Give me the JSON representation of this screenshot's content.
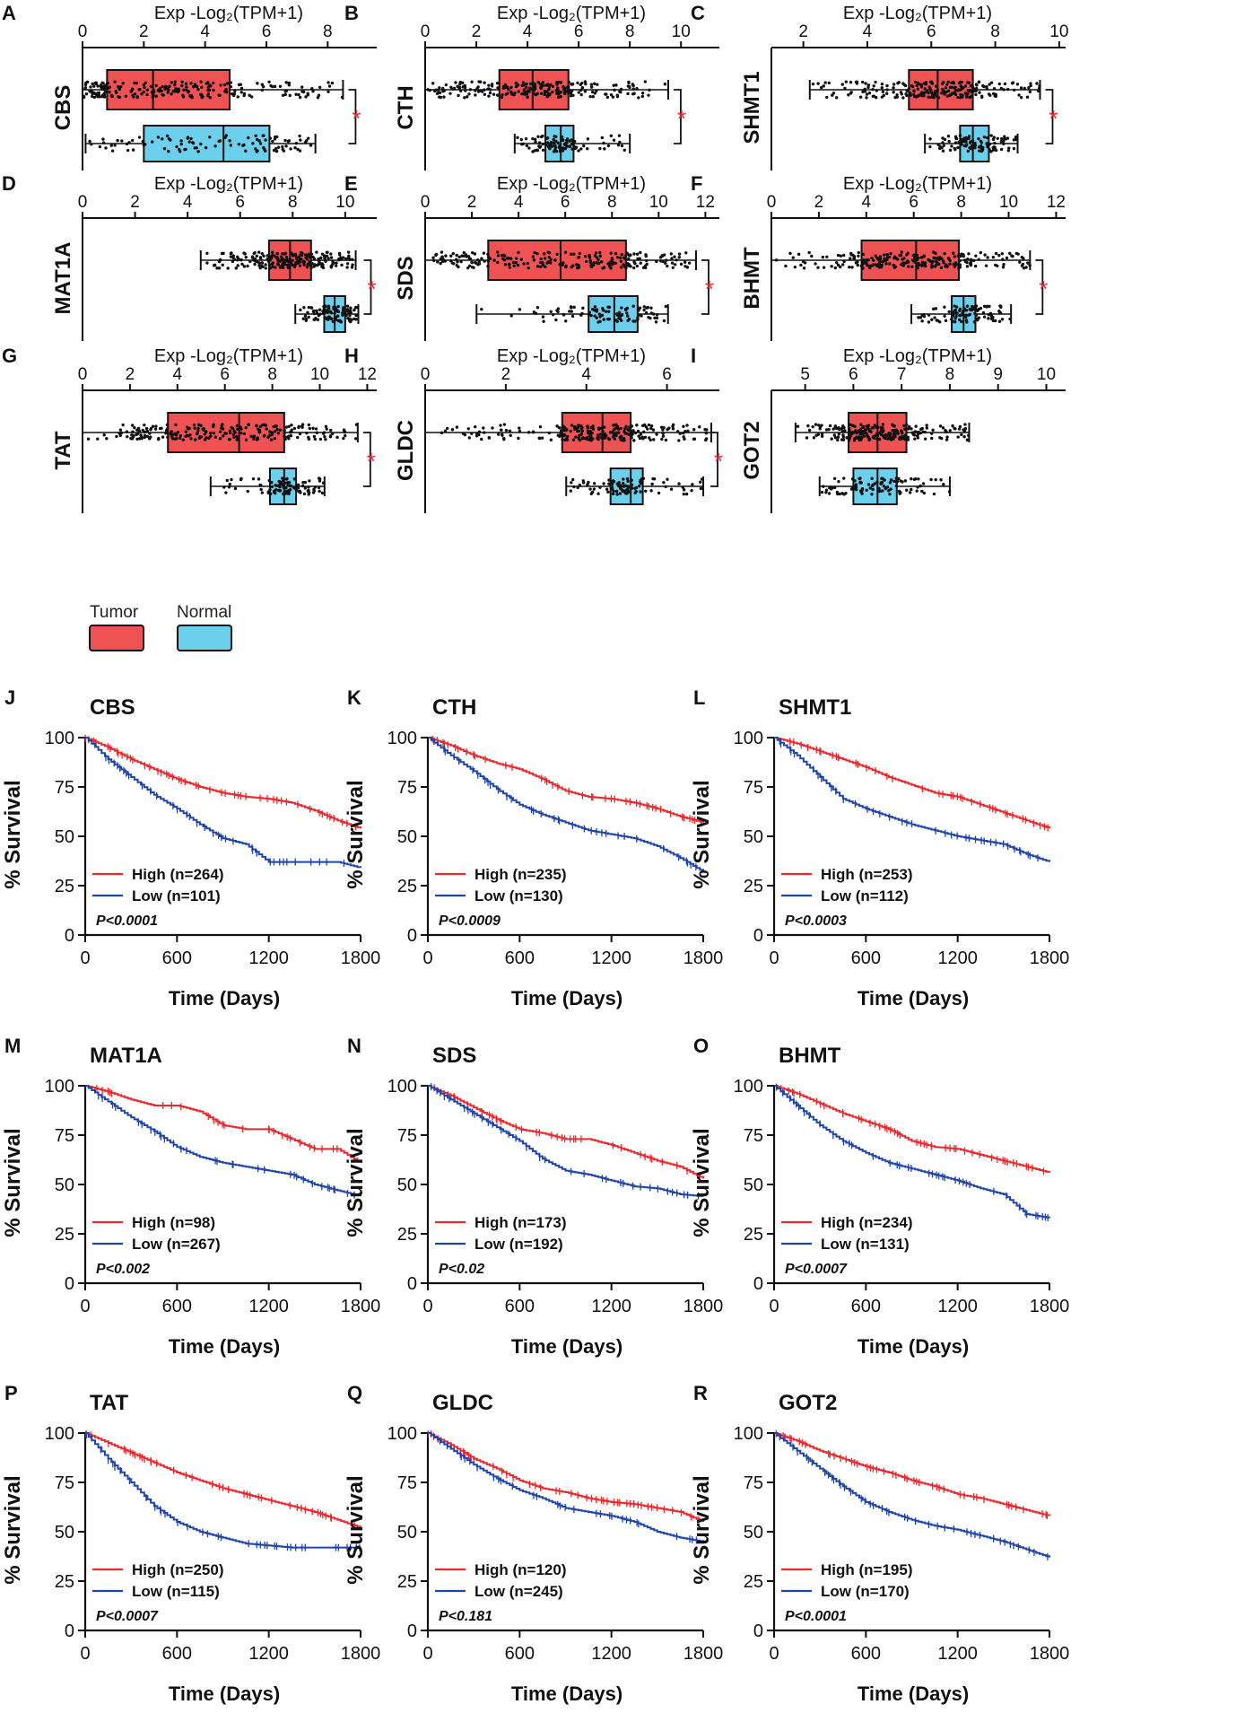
{
  "legend": {
    "tumor_label": "Tumor",
    "normal_label": "Normal",
    "tumor_color": "#ee5253",
    "normal_color": "#6ccfec"
  },
  "colors": {
    "high": "#e8292e",
    "low": "#1f45a8",
    "star": "#e8292e",
    "axis": "#111111"
  },
  "chart_data": [
    {
      "panel": "A",
      "gene": "CBS",
      "type": "box",
      "title": "Exp -Log₂(TPM+1)",
      "ticks": [
        0,
        2,
        4,
        6,
        8
      ],
      "xlim": [
        0,
        9.6
      ],
      "tumor": {
        "min": 0,
        "q1": 0.8,
        "median": 2.3,
        "q3": 4.8,
        "max": 8.5
      },
      "normal": {
        "min": 0.1,
        "q1": 2.0,
        "median": 4.6,
        "q3": 6.1,
        "max": 7.6
      },
      "significant": true
    },
    {
      "panel": "B",
      "gene": "CTH",
      "type": "box",
      "title": "Exp -Log₂(TPM+1)",
      "ticks": [
        0,
        2,
        4,
        6,
        8,
        10
      ],
      "xlim": [
        0,
        11.5
      ],
      "tumor": {
        "min": 0,
        "q1": 2.9,
        "median": 4.2,
        "q3": 5.6,
        "max": 9.5
      },
      "normal": {
        "min": 3.5,
        "q1": 4.7,
        "median": 5.3,
        "q3": 5.8,
        "max": 8.0
      },
      "significant": true
    },
    {
      "panel": "C",
      "gene": "SHMT1",
      "type": "box",
      "title": "Exp -Log₂(TPM+1)",
      "ticks": [
        2,
        4,
        6,
        8,
        10
      ],
      "xlim": [
        1,
        10.2
      ],
      "tumor": {
        "min": 2.2,
        "q1": 5.3,
        "median": 6.2,
        "q3": 7.3,
        "max": 9.4
      },
      "normal": {
        "min": 5.8,
        "q1": 6.9,
        "median": 7.3,
        "q3": 7.8,
        "max": 8.7
      },
      "significant": true
    },
    {
      "panel": "D",
      "gene": "MAT1A",
      "type": "box",
      "title": "Exp -Log₂(TPM+1)",
      "ticks": [
        0,
        2,
        4,
        6,
        8,
        10
      ],
      "xlim": [
        0,
        11.2
      ],
      "tumor": {
        "min": 4.5,
        "q1": 7.1,
        "median": 7.9,
        "q3": 8.7,
        "max": 10.4
      },
      "normal": {
        "min": 8.1,
        "q1": 9.2,
        "median": 9.6,
        "q3": 10.0,
        "max": 10.5
      },
      "significant": true
    },
    {
      "panel": "E",
      "gene": "SDS",
      "type": "box",
      "title": "Exp -Log₂(TPM+1)",
      "ticks": [
        0,
        2,
        4,
        6,
        8,
        10,
        12
      ],
      "xlim": [
        0,
        12.6
      ],
      "tumor": {
        "min": 0,
        "q1": 2.7,
        "median": 5.8,
        "q3": 8.6,
        "max": 11.6
      },
      "normal": {
        "min": 2.2,
        "q1": 7.0,
        "median": 8.1,
        "q3": 9.1,
        "max": 10.4
      },
      "significant": true
    },
    {
      "panel": "F",
      "gene": "BHMT",
      "type": "box",
      "title": "Exp -Log₂(TPM+1)",
      "ticks": [
        0,
        2,
        4,
        6,
        8,
        10,
        12
      ],
      "xlim": [
        0,
        12.4
      ],
      "tumor": {
        "min": 0,
        "q1": 3.8,
        "median": 6.1,
        "q3": 7.9,
        "max": 10.9
      },
      "normal": {
        "min": 5.9,
        "q1": 7.6,
        "median": 8.1,
        "q3": 8.6,
        "max": 10.1
      },
      "significant": true
    },
    {
      "panel": "G",
      "gene": "TAT",
      "type": "box",
      "title": "Exp -Log₂(TPM+1)",
      "ticks": [
        0,
        2,
        4,
        6,
        8,
        10,
        12
      ],
      "xlim": [
        0,
        12.4
      ],
      "tumor": {
        "min": 0,
        "q1": 3.6,
        "median": 6.6,
        "q3": 8.5,
        "max": 11.6
      },
      "normal": {
        "min": 5.4,
        "q1": 7.9,
        "median": 8.5,
        "q3": 9.0,
        "max": 10.2
      },
      "significant": true
    },
    {
      "panel": "H",
      "gene": "GLDC",
      "type": "box",
      "title": "Exp -Log₂(TPM+1)",
      "ticks": [
        0,
        2,
        4,
        6
      ],
      "xlim": [
        0,
        7.3
      ],
      "tumor": {
        "min": 0,
        "q1": 3.4,
        "median": 4.4,
        "q3": 5.1,
        "max": 7.1
      },
      "normal": {
        "min": 3.5,
        "q1": 4.6,
        "median": 5.1,
        "q3": 5.4,
        "max": 6.9
      },
      "significant": true
    },
    {
      "panel": "I",
      "gene": "GOT2",
      "type": "box",
      "title": "Exp -Log₂(TPM+1)",
      "ticks": [
        5,
        6,
        7,
        8,
        9,
        10
      ],
      "xlim": [
        4.3,
        10.4
      ],
      "tumor": {
        "min": 4.8,
        "q1": 5.9,
        "median": 6.5,
        "q3": 7.1,
        "max": 8.4
      },
      "normal": {
        "min": 5.3,
        "q1": 6.0,
        "median": 6.5,
        "q3": 6.9,
        "max": 8.0
      },
      "significant": false
    },
    {
      "panel": "J",
      "gene": "CBS",
      "type": "line",
      "xlabel": "Time (Days)",
      "ylabel": "% Survival",
      "xticks": [
        0,
        600,
        1200,
        1800
      ],
      "yticks": [
        0,
        25,
        50,
        75,
        100
      ],
      "xlim": [
        0,
        1800
      ],
      "ylim": [
        0,
        100
      ],
      "high_label": "High (n=264)",
      "low_label": "Low (n=101)",
      "p_label": "P<0.0001",
      "series": [
        {
          "name": "High",
          "x": [
            0,
            150,
            300,
            450,
            600,
            750,
            900,
            1050,
            1200,
            1350,
            1500,
            1650,
            1800
          ],
          "y": [
            100,
            95,
            89,
            84,
            79,
            75,
            72,
            70,
            69,
            67,
            63,
            58,
            54
          ]
        },
        {
          "name": "Low",
          "x": [
            0,
            150,
            300,
            450,
            600,
            750,
            900,
            1050,
            1200,
            1350,
            1500,
            1650,
            1800
          ],
          "y": [
            100,
            89,
            80,
            71,
            64,
            56,
            49,
            46,
            37,
            37,
            37,
            37,
            34
          ]
        }
      ]
    },
    {
      "panel": "K",
      "gene": "CTH",
      "type": "line",
      "xlabel": "Time (Days)",
      "ylabel": "% Survival",
      "xticks": [
        0,
        600,
        1200,
        1800
      ],
      "yticks": [
        0,
        25,
        50,
        75,
        100
      ],
      "xlim": [
        0,
        1800
      ],
      "ylim": [
        0,
        100
      ],
      "high_label": "High (n=235)",
      "low_label": "Low (n=130)",
      "p_label": "P<0.0009",
      "series": [
        {
          "name": "High",
          "x": [
            0,
            150,
            300,
            450,
            600,
            750,
            900,
            1050,
            1200,
            1350,
            1500,
            1650,
            1800
          ],
          "y": [
            100,
            96,
            91,
            87,
            84,
            79,
            73,
            70,
            69,
            67,
            64,
            60,
            57
          ]
        },
        {
          "name": "Low",
          "x": [
            0,
            150,
            300,
            450,
            600,
            750,
            900,
            1050,
            1200,
            1350,
            1500,
            1650,
            1800
          ],
          "y": [
            100,
            91,
            83,
            74,
            66,
            61,
            57,
            53,
            51,
            49,
            45,
            39,
            32
          ]
        }
      ]
    },
    {
      "panel": "L",
      "gene": "SHMT1",
      "type": "line",
      "xlabel": "Time (Days)",
      "ylabel": "% Survival",
      "xticks": [
        0,
        600,
        1200,
        1800
      ],
      "yticks": [
        0,
        25,
        50,
        75,
        100
      ],
      "xlim": [
        0,
        1800
      ],
      "ylim": [
        0,
        100
      ],
      "high_label": "High (n=253)",
      "low_label": "Low (n=112)",
      "p_label": "P<0.0003",
      "series": [
        {
          "name": "High",
          "x": [
            0,
            150,
            300,
            450,
            600,
            750,
            900,
            1050,
            1200,
            1350,
            1500,
            1650,
            1800
          ],
          "y": [
            100,
            97,
            93,
            89,
            85,
            80,
            76,
            72,
            70,
            66,
            62,
            58,
            54
          ]
        },
        {
          "name": "Low",
          "x": [
            0,
            150,
            300,
            450,
            600,
            750,
            900,
            1050,
            1200,
            1350,
            1500,
            1650,
            1800
          ],
          "y": [
            100,
            91,
            80,
            69,
            64,
            60,
            56,
            53,
            50,
            48,
            46,
            41,
            37
          ]
        }
      ]
    },
    {
      "panel": "M",
      "gene": "MAT1A",
      "type": "line",
      "xlabel": "Time (Days)",
      "ylabel": "% Survival",
      "xticks": [
        0,
        600,
        1200,
        1800
      ],
      "yticks": [
        0,
        25,
        50,
        75,
        100
      ],
      "xlim": [
        0,
        1800
      ],
      "ylim": [
        0,
        100
      ],
      "high_label": "High (n=98)",
      "low_label": "Low (n=267)",
      "p_label": "P<0.002",
      "series": [
        {
          "name": "High",
          "x": [
            0,
            150,
            300,
            450,
            600,
            750,
            900,
            1050,
            1200,
            1350,
            1500,
            1650,
            1800
          ],
          "y": [
            100,
            97,
            93,
            90,
            90,
            87,
            80,
            78,
            78,
            73,
            68,
            68,
            61
          ]
        },
        {
          "name": "Low",
          "x": [
            0,
            150,
            300,
            450,
            600,
            750,
            900,
            1050,
            1200,
            1350,
            1500,
            1650,
            1800
          ],
          "y": [
            100,
            92,
            84,
            77,
            69,
            64,
            61,
            59,
            57,
            55,
            50,
            47,
            44
          ]
        }
      ]
    },
    {
      "panel": "N",
      "gene": "SDS",
      "type": "line",
      "xlabel": "Time (Days)",
      "ylabel": "% Survival",
      "xticks": [
        0,
        600,
        1200,
        1800
      ],
      "yticks": [
        0,
        25,
        50,
        75,
        100
      ],
      "xlim": [
        0,
        1800
      ],
      "ylim": [
        0,
        100
      ],
      "high_label": "High (n=173)",
      "low_label": "Low (n=192)",
      "p_label": "P<0.02",
      "series": [
        {
          "name": "High",
          "x": [
            0,
            150,
            300,
            450,
            600,
            750,
            900,
            1050,
            1200,
            1350,
            1500,
            1650,
            1800
          ],
          "y": [
            100,
            95,
            89,
            83,
            78,
            76,
            73,
            73,
            70,
            66,
            62,
            59,
            53
          ]
        },
        {
          "name": "Low",
          "x": [
            0,
            150,
            300,
            450,
            600,
            750,
            900,
            1050,
            1200,
            1350,
            1500,
            1650,
            1800
          ],
          "y": [
            100,
            93,
            86,
            79,
            72,
            63,
            57,
            55,
            52,
            49,
            48,
            45,
            44
          ]
        }
      ]
    },
    {
      "panel": "O",
      "gene": "BHMT",
      "type": "line",
      "xlabel": "Time (Days)",
      "ylabel": "% Survival",
      "xticks": [
        0,
        600,
        1200,
        1800
      ],
      "yticks": [
        0,
        25,
        50,
        75,
        100
      ],
      "xlim": [
        0,
        1800
      ],
      "ylim": [
        0,
        100
      ],
      "high_label": "High (n=234)",
      "low_label": "Low (n=131)",
      "p_label": "P<0.0007",
      "series": [
        {
          "name": "High",
          "x": [
            0,
            150,
            300,
            450,
            600,
            750,
            900,
            1050,
            1200,
            1350,
            1500,
            1650,
            1800
          ],
          "y": [
            100,
            96,
            91,
            86,
            82,
            78,
            72,
            69,
            68,
            65,
            62,
            59,
            56
          ]
        },
        {
          "name": "Low",
          "x": [
            0,
            150,
            300,
            450,
            600,
            750,
            900,
            1050,
            1200,
            1350,
            1500,
            1650,
            1800
          ],
          "y": [
            100,
            90,
            80,
            72,
            66,
            61,
            58,
            55,
            52,
            48,
            45,
            35,
            33
          ]
        }
      ]
    },
    {
      "panel": "P",
      "gene": "TAT",
      "type": "line",
      "xlabel": "Time (Days)",
      "ylabel": "% Survival",
      "xticks": [
        0,
        600,
        1200,
        1800
      ],
      "yticks": [
        0,
        25,
        50,
        75,
        100
      ],
      "xlim": [
        0,
        1800
      ],
      "ylim": [
        0,
        100
      ],
      "high_label": "High (n=250)",
      "low_label": "Low (n=115)",
      "p_label": "P<0.0007",
      "series": [
        {
          "name": "High",
          "x": [
            0,
            150,
            300,
            450,
            600,
            750,
            900,
            1050,
            1200,
            1350,
            1500,
            1650,
            1800
          ],
          "y": [
            100,
            95,
            90,
            85,
            80,
            76,
            72,
            69,
            66,
            63,
            60,
            56,
            52
          ]
        },
        {
          "name": "Low",
          "x": [
            0,
            150,
            300,
            450,
            600,
            750,
            900,
            1050,
            1200,
            1350,
            1500,
            1650,
            1800
          ],
          "y": [
            100,
            87,
            75,
            63,
            55,
            50,
            47,
            44,
            43,
            42,
            42,
            42,
            42
          ]
        }
      ]
    },
    {
      "panel": "Q",
      "gene": "GLDC",
      "type": "line",
      "xlabel": "Time (Days)",
      "ylabel": "% Survival",
      "xticks": [
        0,
        600,
        1200,
        1800
      ],
      "yticks": [
        0,
        25,
        50,
        75,
        100
      ],
      "xlim": [
        0,
        1800
      ],
      "ylim": [
        0,
        100
      ],
      "high_label": "High (n=120)",
      "low_label": "Low (n=245)",
      "p_label": "P<0.181",
      "series": [
        {
          "name": "High",
          "x": [
            0,
            150,
            300,
            450,
            600,
            750,
            900,
            1050,
            1200,
            1350,
            1500,
            1650,
            1800
          ],
          "y": [
            100,
            94,
            87,
            82,
            76,
            72,
            70,
            67,
            65,
            64,
            62,
            60,
            55
          ]
        },
        {
          "name": "Low",
          "x": [
            0,
            150,
            300,
            450,
            600,
            750,
            900,
            1050,
            1200,
            1350,
            1500,
            1650,
            1800
          ],
          "y": [
            100,
            92,
            84,
            77,
            71,
            67,
            62,
            60,
            58,
            55,
            50,
            47,
            45
          ]
        }
      ]
    },
    {
      "panel": "R",
      "gene": "GOT2",
      "type": "line",
      "xlabel": "Time (Days)",
      "ylabel": "% Survival",
      "xticks": [
        0,
        600,
        1200,
        1800
      ],
      "yticks": [
        0,
        25,
        50,
        75,
        100
      ],
      "xlim": [
        0,
        1800
      ],
      "ylim": [
        0,
        100
      ],
      "high_label": "High (n=195)",
      "low_label": "Low (n=170)",
      "p_label": "P<0.0001",
      "series": [
        {
          "name": "High",
          "x": [
            0,
            150,
            300,
            450,
            600,
            750,
            900,
            1050,
            1200,
            1350,
            1500,
            1650,
            1800
          ],
          "y": [
            100,
            96,
            91,
            87,
            83,
            80,
            76,
            73,
            69,
            67,
            64,
            61,
            58
          ]
        },
        {
          "name": "Low",
          "x": [
            0,
            150,
            300,
            450,
            600,
            750,
            900,
            1050,
            1200,
            1350,
            1500,
            1650,
            1800
          ],
          "y": [
            100,
            91,
            82,
            73,
            65,
            60,
            56,
            53,
            51,
            48,
            45,
            41,
            37
          ]
        }
      ]
    }
  ]
}
